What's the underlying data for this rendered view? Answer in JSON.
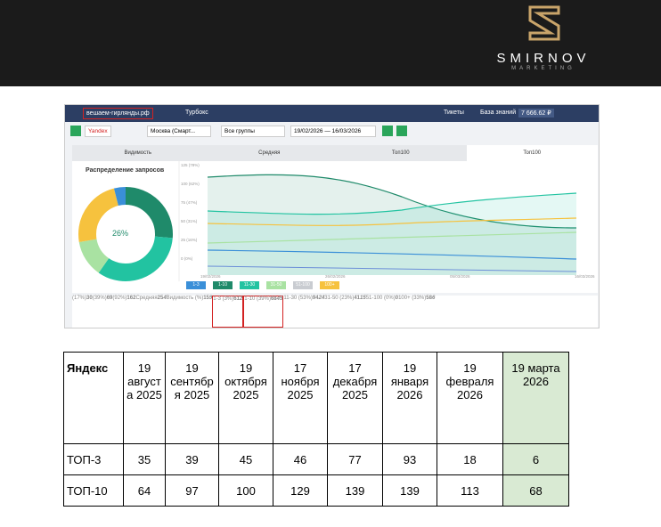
{
  "brand": {
    "name": "SMIRNOV",
    "tagline": "MARKETING"
  },
  "screenshot": {
    "site": "вешаем-гирлянды.рф",
    "turbo": "Турбокс",
    "tickets": "Тикеты",
    "kb": "База знаний",
    "balance": "7 666.62 ₽",
    "search_engine": "Yandex",
    "region": "Москва (Смарт...",
    "group": "Все группы",
    "dates": "19/02/2026 — 16/03/2026",
    "tabs": [
      "Видимость",
      "Средняя",
      "Топ100",
      "Топ100"
    ],
    "donut_title": "Распределение запросов",
    "donut_center": "26%",
    "axis_labels": [
      "125 (78%)",
      "100 (62%)",
      "75 (47%)",
      "50 (31%)",
      "25 (16%)",
      "0 (0%)"
    ],
    "x_labels": [
      "19/02/2026",
      "26/02/2026",
      "05/03/2026",
      "16/03/2026"
    ],
    "legend": [
      "1-3",
      "1-10",
      "11-30",
      "31-50",
      "51-100",
      "100+"
    ],
    "stats": [
      {
        "label": "(17%)",
        "value": "30"
      },
      {
        "label": "(39%)",
        "value": "69"
      },
      {
        "label": "(92%)",
        "value": "162"
      },
      {
        "label": "Средняя",
        "value": "25",
        "delta": "4"
      },
      {
        "label": "Видимость (%)",
        "value": "15",
        "delta": "9"
      },
      {
        "label": "1-3 (3%)",
        "value": "6",
        "delta": "12"
      },
      {
        "label": "1-10 (39%)",
        "value": "68",
        "delta": "45"
      },
      {
        "label": "11-30 (53%)",
        "value": "94",
        "delta": "24"
      },
      {
        "label": "31-50 (23%)",
        "value": "41",
        "delta": "15"
      },
      {
        "label": "51-100 (0%)",
        "value": "0"
      },
      {
        "label": "100+ (33%)",
        "value": "58",
        "delta": "6"
      }
    ]
  },
  "table": {
    "header": [
      "Яндекс",
      "19 августа 2025",
      "19 сентября 2025",
      "19 октября 2025",
      "17 ноября 2025",
      "17 декабря 2025",
      "19 января 2026",
      "19 февраля 2026",
      "19 марта 2026"
    ],
    "rows": [
      [
        "ТОП-3",
        35,
        39,
        45,
        46,
        77,
        93,
        18,
        6
      ],
      [
        "ТОП-10",
        64,
        97,
        100,
        129,
        139,
        139,
        113,
        68
      ]
    ]
  }
}
